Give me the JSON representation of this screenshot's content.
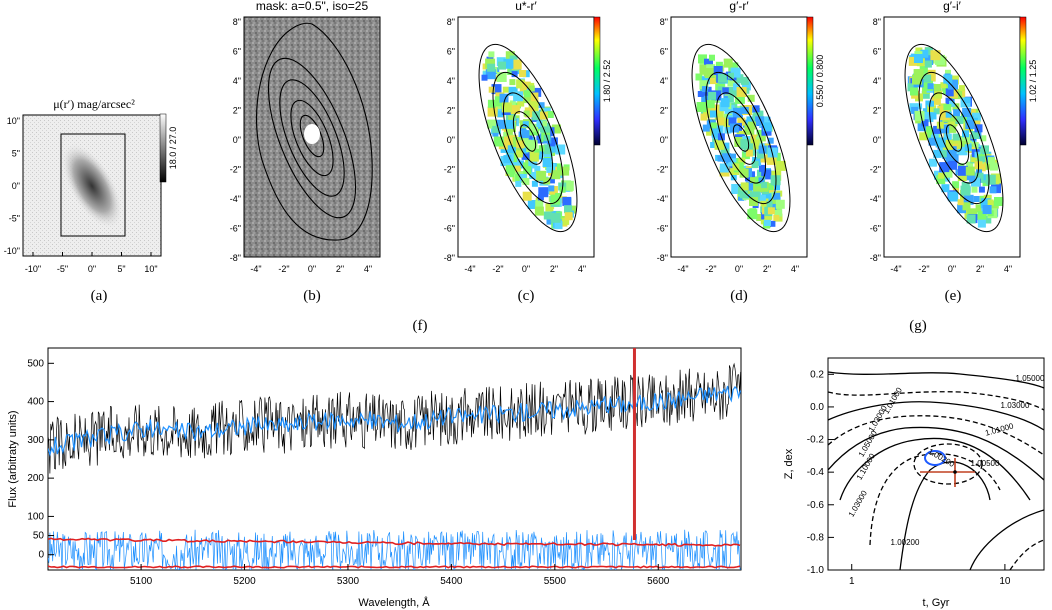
{
  "panels": {
    "a": {
      "caption": "(a)",
      "title": "μ(r′) mag/arcsec²",
      "colorbar_label": "18.0 / 27.0",
      "xticks": [
        "-10\"",
        "-5\"",
        "0\"",
        "5\"",
        "10\""
      ],
      "yticks": [
        "10\"",
        "5\"",
        "0\"",
        "-5\"",
        "-10\""
      ]
    },
    "b": {
      "caption": "(b)",
      "title": "mask: a=0.5\", iso=25"
    },
    "c": {
      "caption": "(c)",
      "title": "u*-r′",
      "colorbar_label": "1.80 / 2.52"
    },
    "d": {
      "caption": "(d)",
      "title": "g′-r′",
      "colorbar_label": "0.550 / 0.800"
    },
    "e": {
      "caption": "(e)",
      "title": "g′-i′",
      "colorbar_label": "1.02 / 1.25"
    },
    "f": {
      "caption": "(f)"
    },
    "g": {
      "caption": "(g)"
    }
  },
  "map_ticks": {
    "x": [
      "-4\"",
      "-2\"",
      "0\"",
      "2\"",
      "4\""
    ],
    "y": [
      "8\"",
      "6\"",
      "4\"",
      "2\"",
      "0\"",
      "-2\"",
      "-4\"",
      "-6\"",
      "-8\""
    ]
  },
  "colors": {
    "observed": "#000000",
    "model": "#1e90ff",
    "residual": "#1e90ff",
    "error": "#e02020",
    "sky_line": "#d03030"
  },
  "chart_data": [
    {
      "type": "line",
      "panel": "f",
      "xlabel": "Wavelength, Å",
      "ylabel": "Flux (arbitraty units)",
      "xlim": [
        5010,
        5680
      ],
      "ylim": [
        -40,
        540
      ],
      "xticks": [
        5100,
        5200,
        5300,
        5400,
        5500,
        5600
      ],
      "yticks": [
        0,
        50,
        100,
        200,
        300,
        400,
        500
      ],
      "x": [
        5010,
        5050,
        5100,
        5150,
        5200,
        5250,
        5300,
        5350,
        5400,
        5450,
        5500,
        5550,
        5600,
        5650,
        5680
      ],
      "series": [
        {
          "values": [
            280,
            300,
            330,
            320,
            335,
            340,
            355,
            345,
            360,
            370,
            380,
            390,
            400,
            420,
            430
          ]
        },
        {
          "values": [
            40,
            40,
            38,
            36,
            35,
            34,
            32,
            30,
            30,
            28,
            28,
            27,
            26,
            25,
            25
          ]
        }
      ],
      "annotations": {
        "sky_line_x": 5577
      }
    },
    {
      "type": "contour",
      "panel": "g",
      "xlabel": "t, Gyr",
      "ylabel": "Z, dex",
      "xscale": "log",
      "xlim": [
        0.7,
        18
      ],
      "ylim": [
        -1.0,
        0.3
      ],
      "xticks": [
        "1",
        "10"
      ],
      "yticks": [
        "0.2",
        "0.0",
        "-0.2",
        "-0.4",
        "-0.6",
        "-0.8",
        "-1.0"
      ],
      "contour_labels": [
        "1.05000",
        "1.03000",
        "1.01000",
        "1.00500",
        "1.01000",
        "1.03000",
        "1.05000",
        "1.10000",
        "1.03000",
        "1.00200",
        "1.00200"
      ],
      "best_fit": {
        "t": 5.2,
        "z": -0.36,
        "t_err": [
          3.8,
          7.8
        ],
        "z_err": [
          -0.43,
          -0.29
        ]
      }
    }
  ]
}
